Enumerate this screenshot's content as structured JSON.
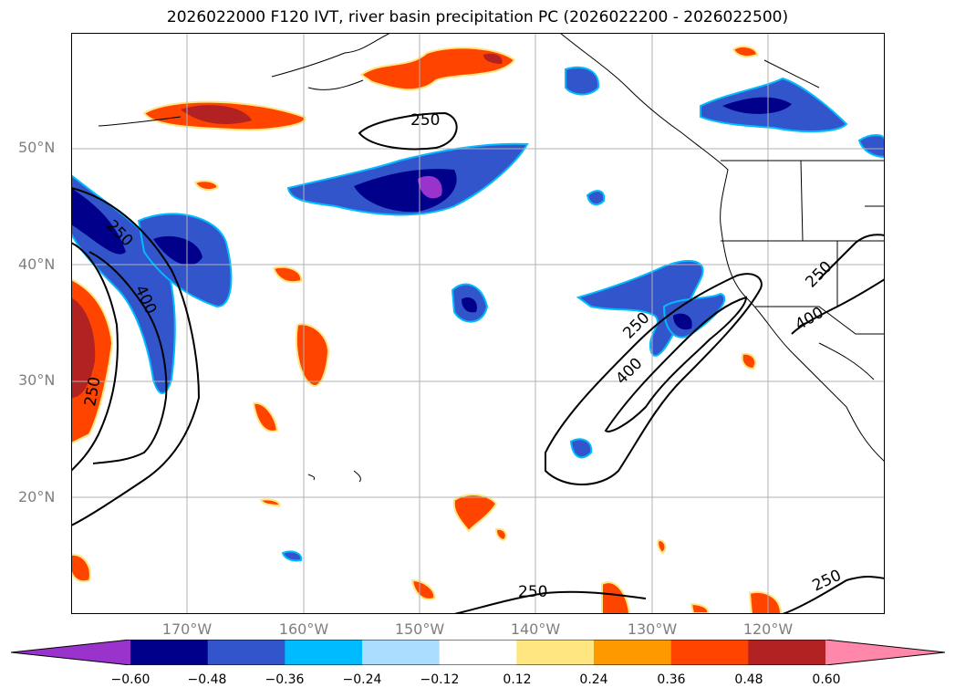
{
  "title": "2026022000 F120 IVT, river basin precipitation PC (2026022200 - 2026022500)",
  "lat_labels": [
    "50°N",
    "40°N",
    "30°N",
    "20°N"
  ],
  "lon_labels": [
    "170°W",
    "160°W",
    "150°W",
    "140°W",
    "130°W",
    "120°W"
  ],
  "contour_labels": [
    "250",
    "250",
    "400",
    "250",
    "250",
    "400",
    "250",
    "400",
    "250",
    "250"
  ],
  "colorbar": {
    "ticks": [
      "−0.60",
      "−0.48",
      "−0.36",
      "−0.24",
      "−0.12",
      "0.12",
      "0.24",
      "0.36",
      "0.48",
      "0.60"
    ],
    "colors": [
      "#9933cc",
      "#00008b",
      "#3355cc",
      "#00bbff",
      "#aaddff",
      "#ffffff",
      "#ffe680",
      "#ff9900",
      "#ff4400",
      "#b22222",
      "#ff88aa"
    ]
  },
  "colors": {
    "neg_strong": "#00008b",
    "neg_mid": "#3355cc",
    "neg_light": "#00bbff",
    "neg_extreme": "#9933cc",
    "pos_light": "#ffe680",
    "pos_mid": "#ff9900",
    "pos_strong": "#ff4400",
    "pos_vstrong": "#b22222"
  }
}
